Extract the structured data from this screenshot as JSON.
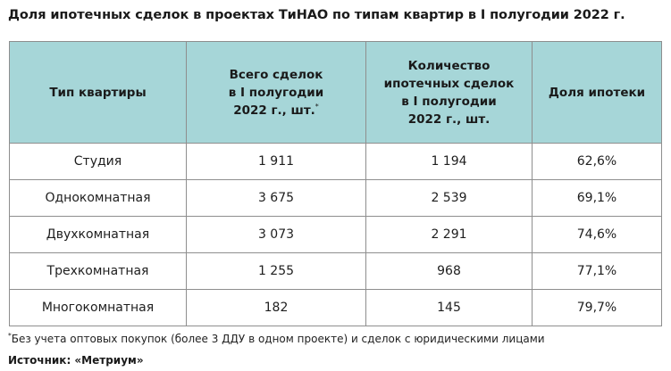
{
  "title": "Доля ипотечных сделок в проектах ТиНАО по типам квартир в I полугодии 2022 г.",
  "table": {
    "headers": [
      {
        "lines": [
          "Тип квартиры"
        ],
        "mark": ""
      },
      {
        "lines": [
          "Всего сделок",
          "в I полугодии",
          "2022 г., шт."
        ],
        "mark": "*"
      },
      {
        "lines": [
          "Количество",
          "ипотечных сделок",
          "в I полугодии",
          "2022 г., шт."
        ],
        "mark": ""
      },
      {
        "lines": [
          "Доля ипотеки"
        ],
        "mark": ""
      }
    ],
    "rows": [
      [
        "Студия",
        "1 911",
        "1 194",
        "62,6%"
      ],
      [
        "Однокомнатная",
        "3 675",
        "2 539",
        "69,1%"
      ],
      [
        "Двухкомнатная",
        "3 073",
        "2 291",
        "74,6%"
      ],
      [
        "Трехкомнатная",
        "1 255",
        "968",
        "77,1%"
      ],
      [
        "Многокомнатная",
        "182",
        "145",
        "79,7%"
      ]
    ]
  },
  "footnote": {
    "mark": "*",
    "text": "Без учета оптовых покупок (более 3 ДДУ в одном проекте) и сделок с юридическими лицами"
  },
  "source": "Источник: «Метриум»",
  "colors": {
    "header_background": "#a6d6d8",
    "border": "#8e8e8e",
    "text": "#1e1e1e"
  }
}
